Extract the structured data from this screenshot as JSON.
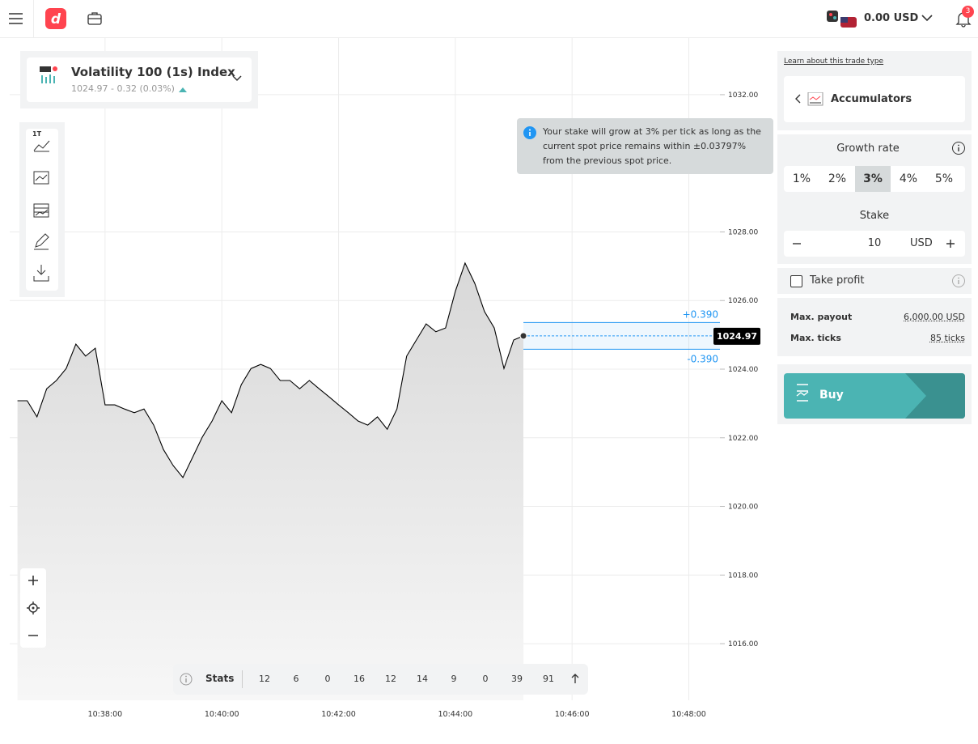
{
  "header": {
    "balance": "0.00 USD",
    "notifications": "3"
  },
  "symbol": {
    "name": "Volatility 100 (1s) Index",
    "quote": "1024.97 - 0.32 (0.03%)"
  },
  "toolbar": {
    "interval": "1T"
  },
  "chart_data": {
    "type": "line",
    "color": "#000000",
    "grid": true,
    "x": [
      "10:36:30",
      "10:36:40",
      "10:36:50",
      "10:37:00",
      "10:37:10",
      "10:37:20",
      "10:37:30",
      "10:37:40",
      "10:37:50",
      "10:38:00",
      "10:38:10",
      "10:38:20",
      "10:38:30",
      "10:38:40",
      "10:38:50",
      "10:39:00",
      "10:39:10",
      "10:39:20",
      "10:39:30",
      "10:39:40",
      "10:39:50",
      "10:40:00",
      "10:40:10",
      "10:40:20",
      "10:40:30",
      "10:40:40",
      "10:40:50",
      "10:41:00",
      "10:41:10",
      "10:41:20",
      "10:41:30",
      "10:41:40",
      "10:41:50",
      "10:42:00",
      "10:42:10",
      "10:42:20",
      "10:42:30",
      "10:42:40",
      "10:42:50",
      "10:43:00",
      "10:43:10",
      "10:43:20",
      "10:43:30",
      "10:43:40",
      "10:43:50",
      "10:44:00",
      "10:44:10",
      "10:44:20",
      "10:44:30",
      "10:44:40",
      "10:44:50",
      "10:45:00",
      "10:45:10"
    ],
    "series": [
      {
        "name": "Volatility 100 (1s) Index",
        "color": "#000000",
        "values": [
          1023.08,
          1023.08,
          1022.61,
          1023.43,
          1023.67,
          1024.02,
          1024.73,
          1024.38,
          1024.61,
          1022.96,
          1022.96,
          1022.84,
          1022.73,
          1022.84,
          1022.37,
          1021.66,
          1021.19,
          1020.84,
          1021.43,
          1022.02,
          1022.49,
          1023.08,
          1022.73,
          1023.55,
          1024.02,
          1024.14,
          1024.02,
          1023.67,
          1023.67,
          1023.43,
          1023.67,
          1023.43,
          1023.2,
          1022.96,
          1022.73,
          1022.49,
          1022.37,
          1022.61,
          1022.25,
          1022.84,
          1024.38,
          1024.85,
          1025.32,
          1025.09,
          1025.2,
          1026.27,
          1027.09,
          1026.5,
          1025.68,
          1025.2,
          1024.02,
          1024.85,
          1024.97
        ]
      }
    ],
    "xlim": [
      "10:36:22",
      "10:48:32"
    ],
    "xticks": [
      "10:38:00",
      "10:40:00",
      "10:42:00",
      "10:44:00",
      "10:46:00",
      "10:48:00"
    ],
    "ylim": [
      1014.35,
      1033.65
    ],
    "yticks": [
      {
        "value": 1016,
        "label": "1016.00"
      },
      {
        "value": 1018,
        "label": "1018.00"
      },
      {
        "value": 1020,
        "label": "1020.00"
      },
      {
        "value": 1022,
        "label": "1022.00"
      },
      {
        "value": 1024,
        "label": "1024.00"
      },
      {
        "value": 1026,
        "label": "1026.00"
      },
      {
        "value": 1028,
        "label": "1028.00"
      },
      {
        "value": 1032,
        "label": "1032.00"
      }
    ],
    "spot": 1024.97,
    "barriers": [
      {
        "value": 0.39,
        "label": "+0.390"
      },
      {
        "value": -0.39,
        "label": "-0.390"
      }
    ]
  },
  "stats": {
    "title": "Stats",
    "values": [
      12,
      6,
      0,
      16,
      12,
      14,
      9,
      0,
      39,
      91
    ]
  },
  "tooltip": "Your stake will grow at 3% per tick as long as the current spot price remains within ±0.03797% from the previous spot price.",
  "panel": {
    "learn": "Learn about this trade type",
    "trade_type": "Accumulators",
    "growth": {
      "title": "Growth rate",
      "options": [
        "1%",
        "2%",
        "3%",
        "4%",
        "5%"
      ],
      "selected": 2
    },
    "stake": {
      "title": "Stake",
      "amount": "10",
      "currency": "USD"
    },
    "take_profit": "Take profit",
    "payout": {
      "label": "Max. payout",
      "value": "6,000.00 USD"
    },
    "ticks": {
      "label": "Max. ticks",
      "value": "85 ticks"
    },
    "buy": "Buy"
  }
}
